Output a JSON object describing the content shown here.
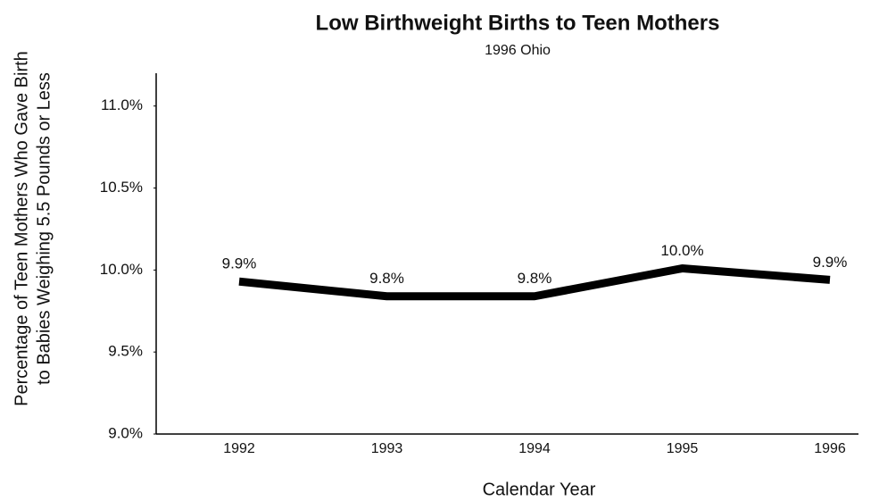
{
  "chart_data": {
    "type": "line",
    "title": "Low Birthweight Births to Teen Mothers",
    "subtitle": "1996 Ohio",
    "xlabel": "Calendar Year",
    "ylabel": [
      "Percentage of Teen Mothers Who Gave Birth",
      "to Babies Weighing 5.5 Pounds or Less"
    ],
    "categories": [
      "1992",
      "1993",
      "1994",
      "1995",
      "1996"
    ],
    "series": [
      {
        "color": "#000000",
        "values": [
          9.93,
          9.84,
          9.84,
          10.01,
          9.94
        ],
        "value_labels": [
          "9.9%",
          "9.8%",
          "9.8%",
          "10.0%",
          "9.9%"
        ]
      }
    ],
    "ylim": [
      9,
      11.2
    ],
    "yticks": [
      {
        "value": 9,
        "label": "9.0%"
      },
      {
        "value": 9.5,
        "label": "9.5%"
      },
      {
        "value": 10,
        "label": "10.0%"
      },
      {
        "value": 10.5,
        "label": "10.5%"
      },
      {
        "value": 11,
        "label": "11.0%"
      }
    ],
    "grid": false
  }
}
